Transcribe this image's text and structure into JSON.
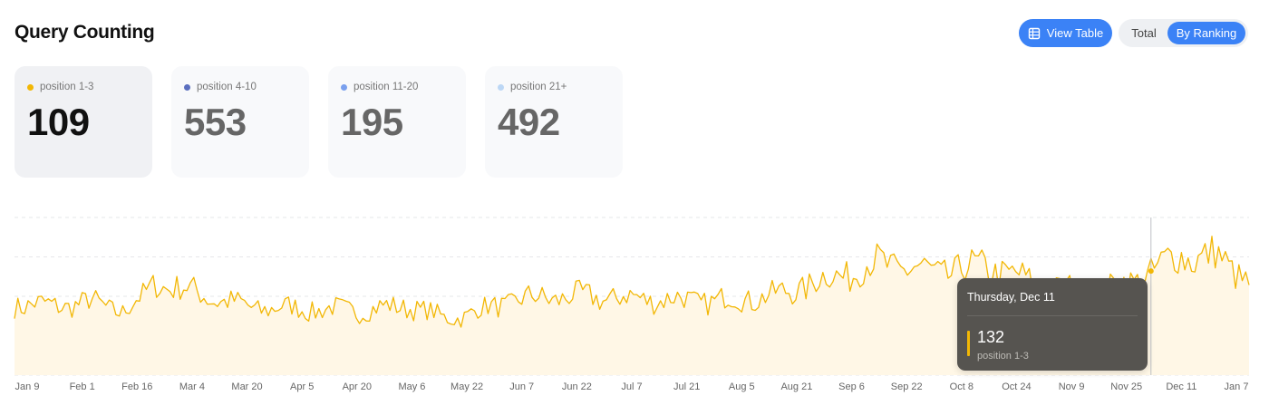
{
  "header": {
    "title": "Query Counting",
    "view_table_label": "View Table",
    "toggle_total_label": "Total",
    "toggle_ranking_label": "By Ranking"
  },
  "cards": [
    {
      "label": "position 1-3",
      "value": "109",
      "color": "#f2b705",
      "active": true
    },
    {
      "label": "position 4-10",
      "value": "553",
      "color": "#5b6fbf",
      "active": false
    },
    {
      "label": "position 11-20",
      "value": "195",
      "color": "#7aa0ee",
      "active": false
    },
    {
      "label": "position 21+",
      "value": "492",
      "color": "#bcd7f5",
      "active": false
    }
  ],
  "colors": {
    "accent": "#3b82f6",
    "series": "#f2b705",
    "area": "#fff7e6",
    "tooltip_bg": "#565450"
  },
  "tooltip": {
    "date": "Thursday, Dec 11",
    "value": "132",
    "label": "position 1-3"
  },
  "chart_data": {
    "type": "area",
    "x_start": "2025-01-09",
    "x_end": "2026-01-09",
    "tick_labels": [
      "Jan 9",
      "Feb 1",
      "Feb 16",
      "Mar 4",
      "Mar 20",
      "Apr 5",
      "Apr 20",
      "May 6",
      "May 22",
      "Jun 7",
      "Jun 22",
      "Jul 7",
      "Jul 21",
      "Aug 5",
      "Aug 21",
      "Sep 6",
      "Sep 22",
      "Oct 8",
      "Oct 24",
      "Nov 9",
      "Nov 25",
      "Dec 11",
      "Jan 7"
    ],
    "ylim": [
      0,
      200
    ],
    "grid": true,
    "highlight": {
      "date": "Dec 11",
      "value": 132
    },
    "series": [
      {
        "color": "#f2b705",
        "anchors": [
          [
            "2025-01-09",
            90
          ],
          [
            "2025-01-20",
            88
          ],
          [
            "2025-02-01",
            92
          ],
          [
            "2025-02-10",
            82
          ],
          [
            "2025-02-16",
            98
          ],
          [
            "2025-02-20",
            118
          ],
          [
            "2025-03-04",
            104
          ],
          [
            "2025-03-12",
            94
          ],
          [
            "2025-03-20",
            86
          ],
          [
            "2025-04-05",
            84
          ],
          [
            "2025-04-20",
            82
          ],
          [
            "2025-05-06",
            88
          ],
          [
            "2025-05-16",
            72
          ],
          [
            "2025-05-22",
            76
          ],
          [
            "2025-06-07",
            96
          ],
          [
            "2025-06-22",
            100
          ],
          [
            "2025-07-07",
            98
          ],
          [
            "2025-07-21",
            96
          ],
          [
            "2025-08-05",
            94
          ],
          [
            "2025-08-21",
            100
          ],
          [
            "2025-09-06",
            122
          ],
          [
            "2025-09-22",
            142
          ],
          [
            "2025-10-08",
            130
          ],
          [
            "2025-10-24",
            138
          ],
          [
            "2025-11-09",
            112
          ],
          [
            "2025-11-25",
            104
          ],
          [
            "2025-12-05",
            118
          ],
          [
            "2025-12-11",
            132
          ],
          [
            "2025-12-20",
            152
          ],
          [
            "2025-12-30",
            150
          ],
          [
            "2026-01-09",
            120
          ]
        ]
      }
    ]
  }
}
